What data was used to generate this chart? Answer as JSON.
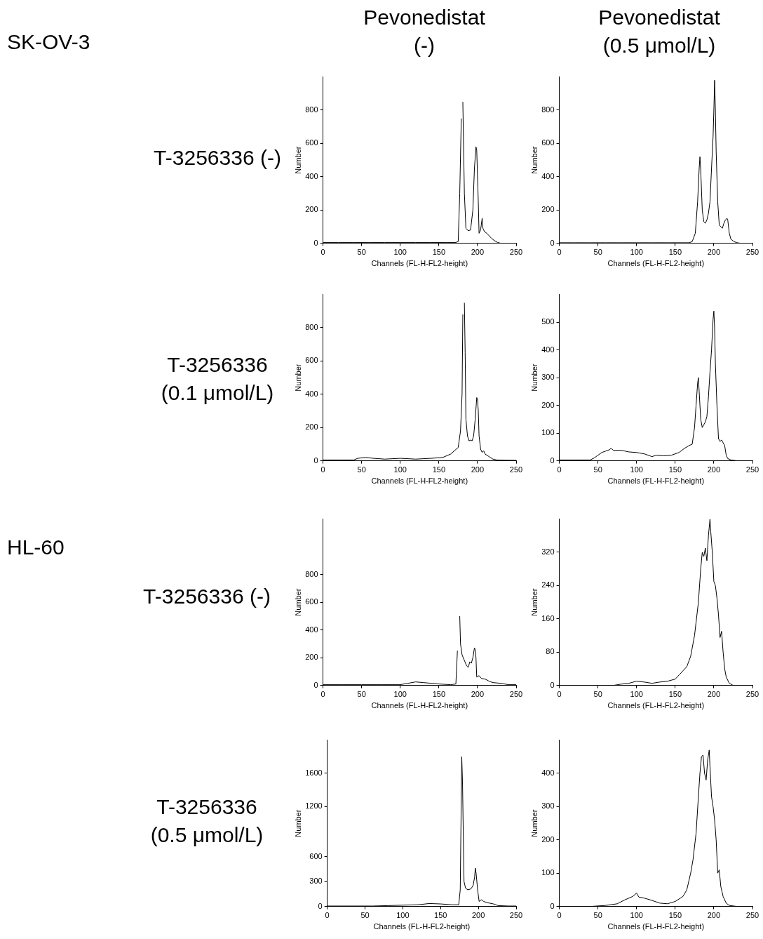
{
  "chart_data": [
    {
      "type": "other",
      "annotations": [
        "SK-OV-3",
        "Pevonedistat (-)",
        "Pevonedistat (0.5 μmol/L)",
        "T-3256336 (-)",
        "T-3256336 (0.1 μmol/L)",
        "HL-60",
        "T-3256336 (-)",
        "T-3256336 (0.5 μmol/L)"
      ]
    },
    {
      "type": "line",
      "color": "#000000",
      "xlabel": "Channels (FL-H-FL2-height)",
      "ylabel": "Number",
      "xlim": [
        0,
        250
      ],
      "ylim": [
        0,
        1000
      ],
      "xticks": [
        0,
        50,
        100,
        150,
        200,
        250
      ],
      "yticks": [
        0,
        200,
        400,
        600,
        800
      ],
      "x": [
        0,
        20,
        40,
        60,
        80,
        100,
        120,
        140,
        160,
        172,
        175,
        177,
        179,
        180,
        181,
        183,
        185,
        188,
        191,
        194,
        196,
        198,
        199,
        201,
        202,
        204,
        206,
        207,
        209,
        212,
        215,
        218,
        222,
        226,
        230,
        250
      ],
      "values": [
        5,
        5,
        5,
        5,
        5,
        5,
        5,
        5,
        5,
        5,
        10,
        300,
        750,
        null,
        850,
        300,
        90,
        75,
        80,
        200,
        450,
        580,
        560,
        250,
        60,
        80,
        150,
        90,
        70,
        60,
        45,
        30,
        15,
        5,
        0,
        0
      ]
    },
    {
      "type": "line",
      "color": "#000000",
      "xlabel": "Channels (FL-H-FL2-height)",
      "ylabel": "Number",
      "xlim": [
        0,
        250
      ],
      "ylim": [
        0,
        1000
      ],
      "xticks": [
        0,
        50,
        100,
        150,
        200,
        250
      ],
      "yticks": [
        0,
        200,
        400,
        600,
        800
      ],
      "x": [
        0,
        20,
        40,
        60,
        80,
        100,
        120,
        140,
        160,
        168,
        172,
        176,
        179,
        181,
        182,
        183,
        185,
        187,
        189,
        191,
        193,
        195,
        197,
        199,
        200,
        201,
        202,
        203,
        205,
        207,
        209,
        211,
        213,
        215,
        217,
        218,
        220,
        222,
        226,
        230,
        235,
        250
      ],
      "values": [
        3,
        3,
        3,
        3,
        3,
        3,
        3,
        3,
        3,
        3,
        10,
        60,
        250,
        450,
        520,
        440,
        200,
        130,
        120,
        140,
        180,
        250,
        450,
        640,
        800,
        980,
        800,
        550,
        250,
        110,
        100,
        90,
        120,
        140,
        150,
        140,
        60,
        25,
        10,
        3,
        0,
        0
      ]
    },
    {
      "type": "line",
      "color": "#000000",
      "xlabel": "Channels (FL-H-FL2-height)",
      "ylabel": "Number",
      "xlim": [
        0,
        250
      ],
      "ylim": [
        0,
        1000
      ],
      "xticks": [
        0,
        50,
        100,
        150,
        200,
        250
      ],
      "yticks": [
        0,
        200,
        400,
        600,
        800
      ],
      "x": [
        0,
        20,
        40,
        45,
        55,
        65,
        80,
        100,
        120,
        140,
        155,
        165,
        170,
        175,
        178,
        180,
        181,
        182,
        183,
        184,
        185,
        187,
        189,
        191,
        193,
        195,
        197,
        199,
        200,
        201,
        202,
        204,
        206,
        208,
        210,
        215,
        220,
        225,
        240,
        250
      ],
      "values": [
        5,
        5,
        5,
        15,
        20,
        15,
        10,
        15,
        10,
        15,
        20,
        40,
        60,
        80,
        180,
        400,
        880,
        null,
        950,
        650,
        250,
        150,
        120,
        125,
        120,
        150,
        250,
        380,
        370,
        300,
        150,
        70,
        50,
        60,
        40,
        25,
        10,
        5,
        3,
        3
      ]
    },
    {
      "type": "line",
      "color": "#000000",
      "xlabel": "Channels (FL-H-FL2-height)",
      "ylabel": "Number",
      "xlim": [
        0,
        250
      ],
      "ylim": [
        0,
        600
      ],
      "xticks": [
        0,
        50,
        100,
        150,
        200,
        250
      ],
      "yticks": [
        0,
        100,
        200,
        300,
        400,
        500
      ],
      "x": [
        0,
        20,
        40,
        45,
        50,
        55,
        60,
        65,
        67,
        70,
        80,
        90,
        100,
        110,
        120,
        125,
        135,
        145,
        155,
        162,
        168,
        172,
        175,
        177,
        179,
        180,
        181,
        183,
        185,
        187,
        189,
        191,
        193,
        195,
        197,
        199,
        200,
        201,
        202,
        204,
        206,
        208,
        210,
        212,
        214,
        216,
        218,
        222,
        230,
        250
      ],
      "values": [
        3,
        3,
        3,
        10,
        20,
        30,
        35,
        40,
        45,
        38,
        38,
        32,
        30,
        25,
        15,
        20,
        18,
        20,
        30,
        45,
        55,
        60,
        120,
        200,
        280,
        300,
        250,
        150,
        120,
        130,
        140,
        160,
        230,
        320,
        400,
        510,
        540,
        480,
        350,
        200,
        80,
        70,
        75,
        65,
        55,
        20,
        8,
        3,
        0,
        0
      ]
    },
    {
      "type": "line",
      "color": "#000000",
      "xlabel": "Channels (FL-H-FL2-height)",
      "ylabel": "Number",
      "xlim": [
        0,
        250
      ],
      "ylim": [
        0,
        1200
      ],
      "xticks": [
        0,
        50,
        100,
        150,
        200,
        250
      ],
      "yticks": [
        0,
        200,
        400,
        600,
        800
      ],
      "x": [
        0,
        25,
        50,
        75,
        100,
        110,
        120,
        130,
        140,
        150,
        165,
        172,
        174,
        175,
        176,
        177,
        178,
        180,
        183,
        186,
        188,
        190,
        192,
        194,
        196,
        197,
        198,
        199,
        202,
        205,
        210,
        215,
        220,
        230,
        240,
        250
      ],
      "values": [
        5,
        5,
        5,
        5,
        5,
        15,
        25,
        20,
        15,
        10,
        5,
        10,
        250,
        null,
        null,
        500,
        300,
        220,
        180,
        140,
        130,
        170,
        160,
        200,
        270,
        260,
        200,
        60,
        70,
        50,
        45,
        30,
        20,
        15,
        5,
        5
      ]
    },
    {
      "type": "line",
      "color": "#000000",
      "xlabel": "Channels (FL-H-FL2-height)",
      "ylabel": "Number",
      "xlim": [
        0,
        250
      ],
      "ylim": [
        0,
        400
      ],
      "xticks": [
        0,
        50,
        100,
        150,
        200,
        250
      ],
      "yticks": [
        0,
        80,
        160,
        240,
        320
      ],
      "x": [
        0,
        35,
        70,
        80,
        90,
        100,
        110,
        120,
        130,
        140,
        150,
        155,
        160,
        165,
        170,
        175,
        180,
        183,
        185,
        187,
        189,
        191,
        193,
        195,
        196,
        198,
        200,
        202,
        204,
        206,
        208,
        210,
        212,
        214,
        216,
        220,
        225,
        250
      ],
      "values": [
        0,
        0,
        0,
        3,
        5,
        10,
        8,
        5,
        8,
        10,
        15,
        25,
        35,
        45,
        70,
        120,
        200,
        280,
        320,
        310,
        330,
        300,
        360,
        400,
        370,
        320,
        250,
        240,
        210,
        170,
        115,
        130,
        80,
        40,
        20,
        5,
        0,
        0
      ]
    },
    {
      "type": "line",
      "color": "#000000",
      "xlabel": "Channels (FL-H-FL2-height)",
      "ylabel": "Number",
      "xlim": [
        0,
        250
      ],
      "ylim": [
        0,
        2000
      ],
      "xticks": [
        0,
        50,
        100,
        150,
        200,
        250
      ],
      "yticks": [
        0,
        300,
        600,
        1200,
        1600
      ],
      "x": [
        0,
        30,
        60,
        80,
        100,
        120,
        135,
        150,
        165,
        174,
        176,
        177,
        178,
        179,
        180,
        181,
        183,
        186,
        190,
        193,
        195,
        196,
        197,
        199,
        201,
        204,
        207,
        212,
        220,
        226,
        240,
        250
      ],
      "values": [
        5,
        5,
        5,
        10,
        15,
        20,
        35,
        30,
        20,
        20,
        200,
        1000,
        1800,
        1500,
        900,
        300,
        220,
        200,
        210,
        250,
        350,
        460,
        400,
        200,
        60,
        80,
        60,
        45,
        30,
        10,
        5,
        5
      ]
    },
    {
      "type": "line",
      "color": "#000000",
      "xlabel": "Channels (FL-H-FL2-height)",
      "ylabel": "Number",
      "xlim": [
        0,
        250
      ],
      "ylim": [
        0,
        500
      ],
      "xticks": [
        0,
        50,
        100,
        150,
        200,
        250
      ],
      "yticks": [
        0,
        100,
        200,
        300,
        400
      ],
      "x": [
        0,
        20,
        40,
        60,
        75,
        85,
        95,
        100,
        103,
        110,
        120,
        130,
        140,
        150,
        160,
        165,
        170,
        173,
        177,
        180,
        182,
        184,
        186,
        188,
        190,
        192,
        194,
        195,
        197,
        199,
        201,
        203,
        205,
        207,
        209,
        212,
        216,
        220,
        230,
        250
      ],
      "values": [
        0,
        0,
        0,
        3,
        8,
        20,
        30,
        40,
        28,
        25,
        18,
        10,
        8,
        15,
        30,
        50,
        100,
        140,
        220,
        330,
        400,
        450,
        455,
        400,
        380,
        440,
        470,
        420,
        330,
        300,
        260,
        200,
        100,
        110,
        60,
        30,
        10,
        3,
        0,
        0
      ]
    }
  ]
}
